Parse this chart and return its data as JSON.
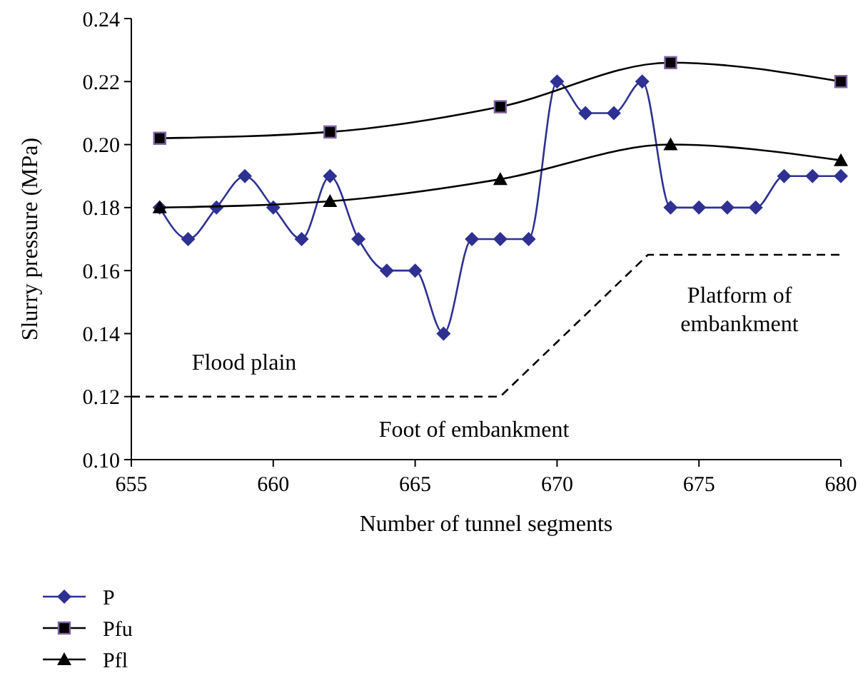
{
  "chart_data": {
    "type": "line",
    "xlabel": "Number of tunnel segments",
    "ylabel": "Slurry pressure (MPa)",
    "x": [
      656,
      657,
      658,
      659,
      660,
      661,
      662,
      663,
      664,
      665,
      666,
      667,
      668,
      669,
      670,
      671,
      672,
      673,
      674,
      675,
      676,
      677,
      678,
      679,
      680
    ],
    "xlim": [
      655,
      680
    ],
    "xticks": [
      655,
      660,
      665,
      670,
      675,
      680
    ],
    "ylim": [
      0.1,
      0.24
    ],
    "yticks": [
      {
        "value": 0.1,
        "label": "0.10"
      },
      {
        "value": 0.12,
        "label": "0.12"
      },
      {
        "value": 0.14,
        "label": "0.14"
      },
      {
        "value": 0.16,
        "label": "0.16"
      },
      {
        "value": 0.18,
        "label": "0.18"
      },
      {
        "value": 0.2,
        "label": "0.20"
      },
      {
        "value": 0.22,
        "label": "0.22"
      },
      {
        "value": 0.24,
        "label": "0.24"
      }
    ],
    "grid": false,
    "legend": "bottom left",
    "series": [
      {
        "name": "P",
        "color": "#2e3192",
        "marker": "diamond",
        "values": [
          0.18,
          0.17,
          0.18,
          0.19,
          0.18,
          0.17,
          0.19,
          0.17,
          0.16,
          0.16,
          0.14,
          0.17,
          0.17,
          0.17,
          0.22,
          0.21,
          0.21,
          0.22,
          0.18,
          0.18,
          0.18,
          0.18,
          0.19,
          0.19,
          0.19
        ]
      },
      {
        "name": "Pfu",
        "color": "#000000",
        "marker": "square",
        "x": [
          656,
          662,
          668,
          674,
          680
        ],
        "values": [
          0.202,
          0.204,
          0.212,
          0.226,
          0.22
        ]
      },
      {
        "name": "Pfl",
        "color": "#000000",
        "marker": "triangle",
        "x": [
          656,
          662,
          668,
          674,
          680
        ],
        "values": [
          0.18,
          0.182,
          0.189,
          0.2,
          0.195
        ]
      },
      {
        "color": "#000000",
        "marker": "none",
        "line_style": "dashed",
        "x": [
          655,
          668,
          673.2,
          680
        ],
        "values": [
          0.12,
          0.12,
          0.165,
          0.165
        ]
      }
    ],
    "annotations": [
      "Flood plain",
      "Platform of embankment",
      "Foot of embankment"
    ]
  }
}
